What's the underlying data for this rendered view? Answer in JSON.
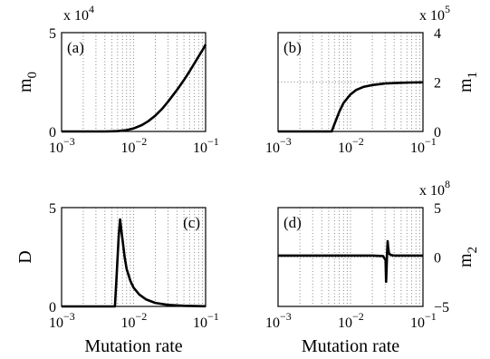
{
  "chart_data": [
    {
      "type": "line",
      "panel": "(a)",
      "ylabel": "m",
      "ylabel_sub": "0",
      "xlabel": "",
      "xscale": "log",
      "xlim": [
        0.001,
        0.1
      ],
      "ylim": [
        0,
        5
      ],
      "y_multiplier": "x 10",
      "y_multiplier_exp": "4",
      "yaxis_side": "left",
      "yticks": [
        "0",
        "5"
      ],
      "xticks": [
        {
          "base": "10",
          "exp": "−3"
        },
        {
          "base": "10",
          "exp": "−2"
        },
        {
          "base": "10",
          "exp": "−1"
        }
      ],
      "grid": true,
      "series": [
        {
          "x": [
            0.001,
            0.004,
            0.006,
            0.008,
            0.01,
            0.013,
            0.016,
            0.02,
            0.025,
            0.03,
            0.04,
            0.05,
            0.06,
            0.07,
            0.08,
            0.09,
            0.1
          ],
          "y": [
            0,
            0,
            0.02,
            0.07,
            0.15,
            0.32,
            0.52,
            0.8,
            1.15,
            1.5,
            2.1,
            2.6,
            3.05,
            3.45,
            3.8,
            4.1,
            4.4
          ]
        }
      ]
    },
    {
      "type": "line",
      "panel": "(b)",
      "ylabel": "m",
      "ylabel_sub": "1",
      "xlabel": "",
      "xscale": "log",
      "xlim": [
        0.001,
        0.1
      ],
      "ylim": [
        0,
        4
      ],
      "y_multiplier": "x 10",
      "y_multiplier_exp": "5",
      "yaxis_side": "right",
      "yticks": [
        "0",
        "2",
        "4"
      ],
      "xticks": [
        {
          "base": "10",
          "exp": "−3"
        },
        {
          "base": "10",
          "exp": "−2"
        },
        {
          "base": "10",
          "exp": "−1"
        }
      ],
      "grid": true,
      "series": [
        {
          "x": [
            0.001,
            0.0055,
            0.006,
            0.007,
            0.008,
            0.01,
            0.012,
            0.015,
            0.02,
            0.03,
            0.05,
            0.07,
            0.1
          ],
          "y": [
            0,
            0,
            0.3,
            0.8,
            1.15,
            1.5,
            1.68,
            1.8,
            1.88,
            1.94,
            1.97,
            1.98,
            1.99
          ]
        }
      ]
    },
    {
      "type": "line",
      "panel": "(c)",
      "ylabel": "D",
      "ylabel_sub": "",
      "xlabel": "Mutation rate",
      "xscale": "log",
      "xlim": [
        0.001,
        0.1
      ],
      "ylim": [
        0,
        5
      ],
      "y_multiplier": "",
      "y_multiplier_exp": "",
      "yaxis_side": "left",
      "yticks": [
        "0",
        "5"
      ],
      "xticks": [
        {
          "base": "10",
          "exp": "−3"
        },
        {
          "base": "10",
          "exp": "−2"
        },
        {
          "base": "10",
          "exp": "−1"
        }
      ],
      "grid": true,
      "series": [
        {
          "x": [
            0.001,
            0.0055,
            0.0058,
            0.0062,
            0.0065,
            0.007,
            0.0075,
            0.008,
            0.009,
            0.01,
            0.012,
            0.015,
            0.02,
            0.03,
            0.05,
            0.1
          ],
          "y": [
            0,
            0,
            1.5,
            3.5,
            4.4,
            3.4,
            2.5,
            1.9,
            1.3,
            0.95,
            0.6,
            0.35,
            0.18,
            0.08,
            0.03,
            0.01
          ]
        }
      ]
    },
    {
      "type": "line",
      "panel": "(d)",
      "ylabel": "m",
      "ylabel_sub": "2",
      "xlabel": "Mutation rate",
      "xscale": "log",
      "xlim": [
        0.001,
        0.1
      ],
      "ylim": [
        -5,
        5
      ],
      "y_multiplier": "x 10",
      "y_multiplier_exp": "8",
      "yaxis_side": "right",
      "yticks": [
        "−5",
        "0",
        "5"
      ],
      "xticks": [
        {
          "base": "10",
          "exp": "−3"
        },
        {
          "base": "10",
          "exp": "−2"
        },
        {
          "base": "10",
          "exp": "−1"
        }
      ],
      "grid": true,
      "series": [
        {
          "x": [
            0.001,
            0.02,
            0.028,
            0.0305,
            0.031,
            0.0315,
            0.032,
            0.0325,
            0.033,
            0.034,
            0.036,
            0.04,
            0.05,
            0.1
          ],
          "y": [
            0.15,
            0.15,
            0.1,
            -0.3,
            -2.5,
            -1.0,
            0.5,
            1.6,
            1.0,
            0.35,
            0.2,
            0.15,
            0.15,
            0.15
          ]
        }
      ]
    }
  ]
}
